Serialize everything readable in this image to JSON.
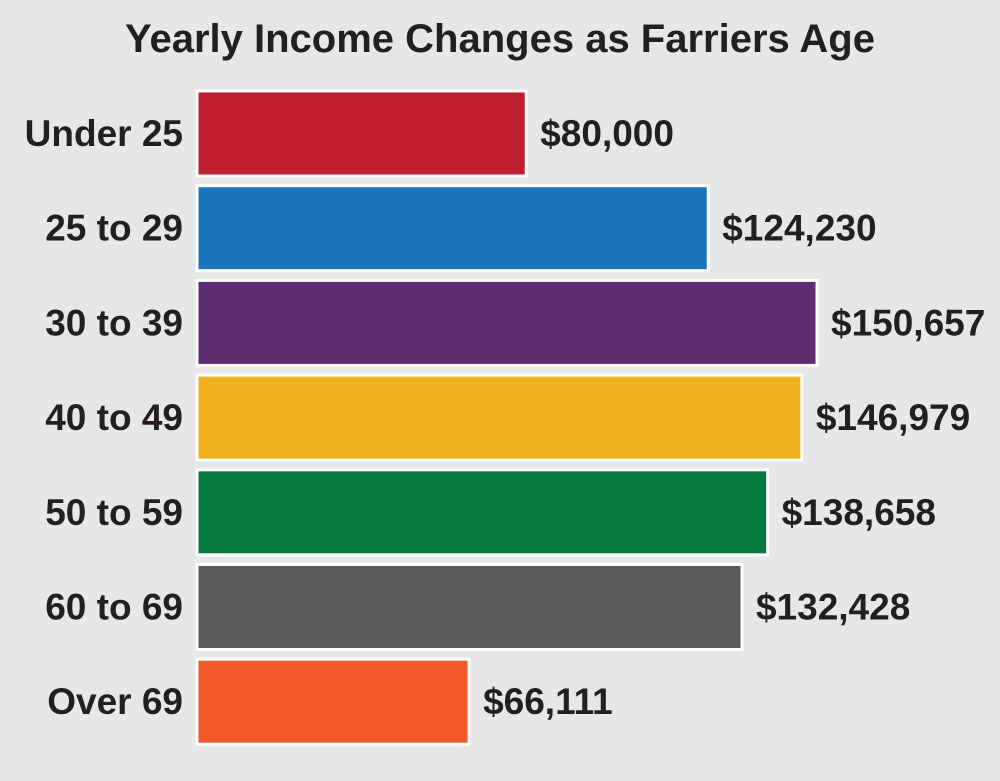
{
  "chart_data": {
    "type": "bar",
    "orientation": "horizontal",
    "title": "Yearly Income Changes as Farriers Age",
    "xlabel": "",
    "ylabel": "",
    "grid": false,
    "legend": "none",
    "categories": [
      "Under 25",
      "25 to 29",
      "30 to 39",
      "40 to 49",
      "50 to 59",
      "60 to 69",
      "Over 69"
    ],
    "values": [
      80000,
      124230,
      150657,
      146979,
      138658,
      132428,
      66111
    ],
    "value_labels": [
      "$80,000",
      "$124,230",
      "$150,657",
      "$146,979",
      "$138,658",
      "$132,428",
      "$66,111"
    ],
    "colors": [
      "#be1e2d",
      "#1b75bc",
      "#5e2a70",
      "#efb020",
      "#077a3e",
      "#58595b",
      "#f15a29"
    ],
    "xlim": [
      0,
      150657
    ]
  }
}
